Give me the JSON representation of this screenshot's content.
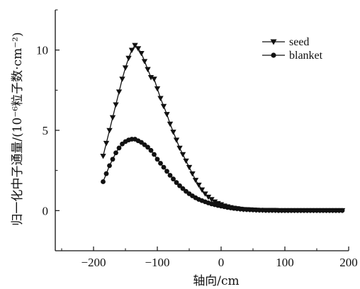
{
  "chart_data": {
    "type": "line",
    "title": "",
    "xlabel": "轴向/cm",
    "ylabel": "归一化中子通量/(10⁻⁶粒子数·cm⁻²)",
    "xlim": [
      -260,
      200
    ],
    "ylim": [
      -2.5,
      12.5
    ],
    "xticks": [
      -200,
      -100,
      0,
      100,
      200
    ],
    "yticks": [
      0,
      5,
      10
    ],
    "xtick_labels": [
      "−200",
      "−100",
      "0",
      "100",
      "200"
    ],
    "ytick_labels": [
      "0",
      "5",
      "10"
    ],
    "grid": false,
    "legend_position": "top-right",
    "series": [
      {
        "name": "seed",
        "marker": "triangle-down",
        "x": [
          -185,
          -180,
          -175,
          -170,
          -165,
          -160,
          -155,
          -150,
          -145,
          -140,
          -135,
          -130,
          -125,
          -120,
          -115,
          -110,
          -105,
          -100,
          -95,
          -90,
          -85,
          -80,
          -75,
          -70,
          -65,
          -60,
          -55,
          -50,
          -45,
          -40,
          -35,
          -30,
          -25,
          -20,
          -15,
          -10,
          -5,
          0,
          5,
          10,
          15,
          20,
          25,
          30,
          35,
          40,
          45,
          50,
          55,
          60,
          65,
          70,
          75,
          80,
          85,
          90,
          95,
          100,
          105,
          110,
          115,
          120,
          125,
          130,
          135,
          140,
          145,
          150,
          155,
          160,
          165,
          170,
          175,
          180,
          185,
          190
        ],
        "y": [
          3.4,
          4.2,
          5.0,
          5.8,
          6.6,
          7.4,
          8.2,
          8.9,
          9.5,
          10.0,
          10.3,
          10.1,
          9.8,
          9.3,
          8.8,
          8.3,
          8.2,
          7.6,
          7.0,
          6.5,
          6.0,
          5.4,
          4.9,
          4.4,
          3.9,
          3.5,
          3.1,
          2.7,
          2.3,
          1.9,
          1.6,
          1.3,
          1.05,
          0.85,
          0.7,
          0.55,
          0.45,
          0.38,
          0.3,
          0.25,
          0.2,
          0.16,
          0.13,
          0.1,
          0.08,
          0.07,
          0.06,
          0.05,
          0.04,
          0.03,
          0.03,
          0.02,
          0.02,
          0.02,
          0.02,
          0.01,
          0.01,
          0.01,
          0.01,
          0.01,
          0.01,
          0.01,
          0.01,
          0.01,
          0.01,
          0.01,
          0.01,
          0.01,
          0.01,
          0.01,
          0.01,
          0.01,
          0.01,
          0.01,
          0.01,
          0.01
        ]
      },
      {
        "name": "blanket",
        "marker": "circle",
        "x": [
          -185,
          -180,
          -175,
          -170,
          -165,
          -160,
          -155,
          -150,
          -145,
          -140,
          -135,
          -130,
          -125,
          -120,
          -115,
          -110,
          -105,
          -100,
          -95,
          -90,
          -85,
          -80,
          -75,
          -70,
          -65,
          -60,
          -55,
          -50,
          -45,
          -40,
          -35,
          -30,
          -25,
          -20,
          -15,
          -10,
          -5,
          0,
          5,
          10,
          15,
          20,
          25,
          30,
          35,
          40,
          45,
          50,
          55,
          60,
          65,
          70,
          75,
          80,
          85,
          90,
          95,
          100,
          105,
          110,
          115,
          120,
          125,
          130,
          135,
          140,
          145,
          150,
          155,
          160,
          165,
          170,
          175,
          180,
          185,
          190
        ],
        "y": [
          1.8,
          2.3,
          2.8,
          3.2,
          3.6,
          3.9,
          4.15,
          4.3,
          4.4,
          4.45,
          4.45,
          4.35,
          4.25,
          4.1,
          3.95,
          3.75,
          3.5,
          3.2,
          2.95,
          2.7,
          2.45,
          2.2,
          1.97,
          1.75,
          1.55,
          1.37,
          1.2,
          1.05,
          0.92,
          0.8,
          0.7,
          0.62,
          0.55,
          0.48,
          0.42,
          0.37,
          0.32,
          0.28,
          0.24,
          0.2,
          0.17,
          0.14,
          0.12,
          0.1,
          0.08,
          0.07,
          0.06,
          0.05,
          0.04,
          0.03,
          0.03,
          0.02,
          0.02,
          0.02,
          0.02,
          0.01,
          0.01,
          0.01,
          0.01,
          0.01,
          0.01,
          0.01,
          0.01,
          0.01,
          0.01,
          0.01,
          0.01,
          0.01,
          0.01,
          0.01,
          0.01,
          0.01,
          0.01,
          0.01,
          0.01,
          0.01
        ]
      }
    ]
  }
}
